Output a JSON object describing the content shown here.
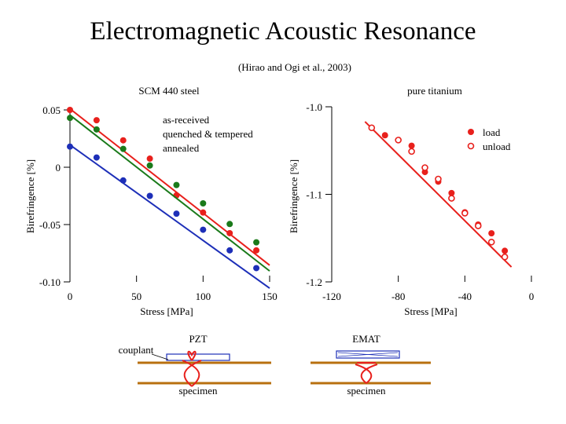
{
  "slide": {
    "title": "Electromagnetic Acoustic Resonance",
    "citation": "(Hirao and Ogi et al., 2003)"
  },
  "chart_data": [
    {
      "type": "scatter",
      "title": "SCM 440 steel",
      "xlabel": "Stress [MPa]",
      "ylabel": "Birefringence [%]",
      "xlim": [
        0,
        150
      ],
      "ylim": [
        -0.1,
        0.05
      ],
      "xticks": [
        "0",
        "50",
        "100",
        "150"
      ],
      "yticks": [
        "-0.10",
        "-0.05",
        "0",
        "0.05"
      ],
      "legend": {
        "placement": "top-center",
        "entries": [
          "as-received",
          "quenched & tempered",
          "annealed"
        ]
      },
      "series": [
        {
          "name": "as-received",
          "color": "#e8201c",
          "x": [
            0,
            20,
            40,
            60,
            80,
            100,
            120,
            140
          ],
          "y": [
            0.05,
            0.041,
            0.0235,
            0.0075,
            -0.0245,
            -0.0395,
            -0.0575,
            -0.0725
          ],
          "fit": {
            "x": [
              0,
              150
            ],
            "y": [
              0.051,
              -0.0855
            ]
          }
        },
        {
          "name": "quenched & tempered",
          "color": "#1a7a1a",
          "x": [
            0,
            20,
            40,
            60,
            80,
            100,
            120,
            140
          ],
          "y": [
            0.043,
            0.033,
            0.016,
            0.0015,
            -0.0155,
            -0.0315,
            -0.0495,
            -0.0655
          ],
          "fit": {
            "x": [
              0,
              150
            ],
            "y": [
              0.0455,
              -0.0905
            ]
          }
        },
        {
          "name": "annealed",
          "color": "#1d2fb8",
          "x": [
            0,
            20,
            40,
            60,
            80,
            100,
            120,
            140
          ],
          "y": [
            0.018,
            0.0085,
            -0.0115,
            -0.025,
            -0.0405,
            -0.0545,
            -0.0725,
            -0.088
          ],
          "fit": {
            "x": [
              0,
              150
            ],
            "y": [
              0.0195,
              -0.1055
            ]
          }
        }
      ]
    },
    {
      "type": "scatter",
      "title": "pure titanium",
      "xlabel": "Stress [MPa]",
      "ylabel": "Birefringence [%]",
      "xlim": [
        -120,
        0
      ],
      "ylim": [
        -1.2,
        -1.0
      ],
      "xticks": [
        "-120",
        "-80",
        "-40",
        "0"
      ],
      "yticks": [
        "-1.2",
        "-1.1",
        "-1.0"
      ],
      "legend": {
        "placement": "top-right",
        "entries": [
          "load",
          "unload"
        ]
      },
      "line_color": "#e8201c",
      "series": [
        {
          "name": "load",
          "marker": "filled",
          "color": "#e8201c",
          "x": [
            -88,
            -72,
            -64,
            -56,
            -48,
            -40,
            -32,
            -24,
            -16
          ],
          "y": [
            -1.0325,
            -1.0445,
            -1.0745,
            -1.0855,
            -1.0985,
            -1.1205,
            -1.1345,
            -1.1445,
            -1.1645
          ]
        },
        {
          "name": "unload",
          "marker": "open",
          "color": "#e8201c",
          "x": [
            -96,
            -80,
            -72,
            -64,
            -56,
            -48,
            -40,
            -32,
            -24,
            -16
          ],
          "y": [
            -1.024,
            -1.038,
            -1.051,
            -1.0695,
            -1.0825,
            -1.1045,
            -1.1215,
            -1.136,
            -1.1545,
            -1.1715
          ]
        }
      ],
      "fit": {
        "x": [
          -100,
          -12
        ],
        "y": [
          -1.017,
          -1.183
        ]
      }
    }
  ],
  "diagrams": {
    "pzt": {
      "transducer_label": "PZT",
      "couplant_label": "couplant",
      "specimen_label": "specimen"
    },
    "emat": {
      "transducer_label": "EMAT",
      "specimen_label": "specimen"
    }
  }
}
